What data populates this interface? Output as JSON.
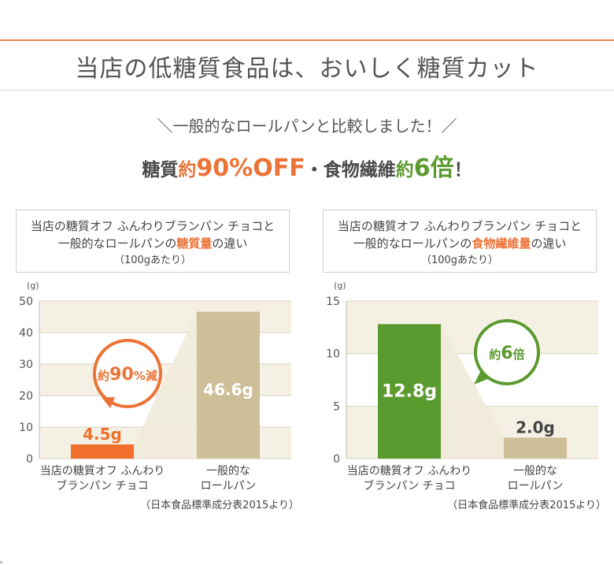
{
  "page": {
    "headline": "当店の低糖質食品は、おいしく糖質カット",
    "compare_line": "＼一般的なロールパンと比較しました！／",
    "claim": {
      "part1": "糖質",
      "part2": "約",
      "part3": "90%OFF",
      "part4": "・食物繊維",
      "part5": "約",
      "part6": "6倍",
      "part7": "！"
    }
  },
  "chart_data": [
    {
      "type": "bar",
      "caption_line1": "当店の糖質オフ ふんわりブランパン チョコと",
      "caption_line2_pre": "一般的なロールパンの",
      "caption_line2_hl": "糖質量",
      "caption_line2_post": "の違い",
      "caption_line3": "（100gあたり）",
      "ylabel": "(g)",
      "ylim": [
        0,
        50
      ],
      "yticks": [
        "0",
        "10",
        "20",
        "30",
        "40",
        "50"
      ],
      "categories": [
        [
          "当店の糖質オフ ふんわり",
          "ブランパン チョコ"
        ],
        [
          "一般的な",
          "ロールパン"
        ]
      ],
      "values": [
        4.5,
        46.6
      ],
      "value_labels": [
        "4.5g",
        "46.6g"
      ],
      "colors": [
        "#ef6f2b",
        "#cdbf98"
      ],
      "badge": {
        "pre": "約",
        "num": "90",
        "post": "%減",
        "color": "#ec7336"
      },
      "source": "（日本食品標準成分表2015より）"
    },
    {
      "type": "bar",
      "caption_line1": "当店の糖質オフ ふんわりブランパン チョコと",
      "caption_line2_pre": "一般的なロールパンの",
      "caption_line2_hl": "食物繊維量",
      "caption_line2_post": "の違い",
      "caption_line3": "（100gあたり）",
      "ylabel": "(g)",
      "ylim": [
        0,
        15
      ],
      "yticks": [
        "0",
        "5",
        "10",
        "15"
      ],
      "categories": [
        [
          "当店の糖質オフ ふんわり",
          "ブランパン チョコ"
        ],
        [
          "一般的な",
          "ロールパン"
        ]
      ],
      "values": [
        12.8,
        2.0
      ],
      "value_labels": [
        "12.8g",
        "2.0g"
      ],
      "colors": [
        "#5b9a2e",
        "#cdbf98"
      ],
      "badge": {
        "pre": "約",
        "num": "6",
        "post": "倍",
        "color": "#5b9a2e"
      },
      "source": "（日本食品標準成分表2015より）"
    }
  ]
}
